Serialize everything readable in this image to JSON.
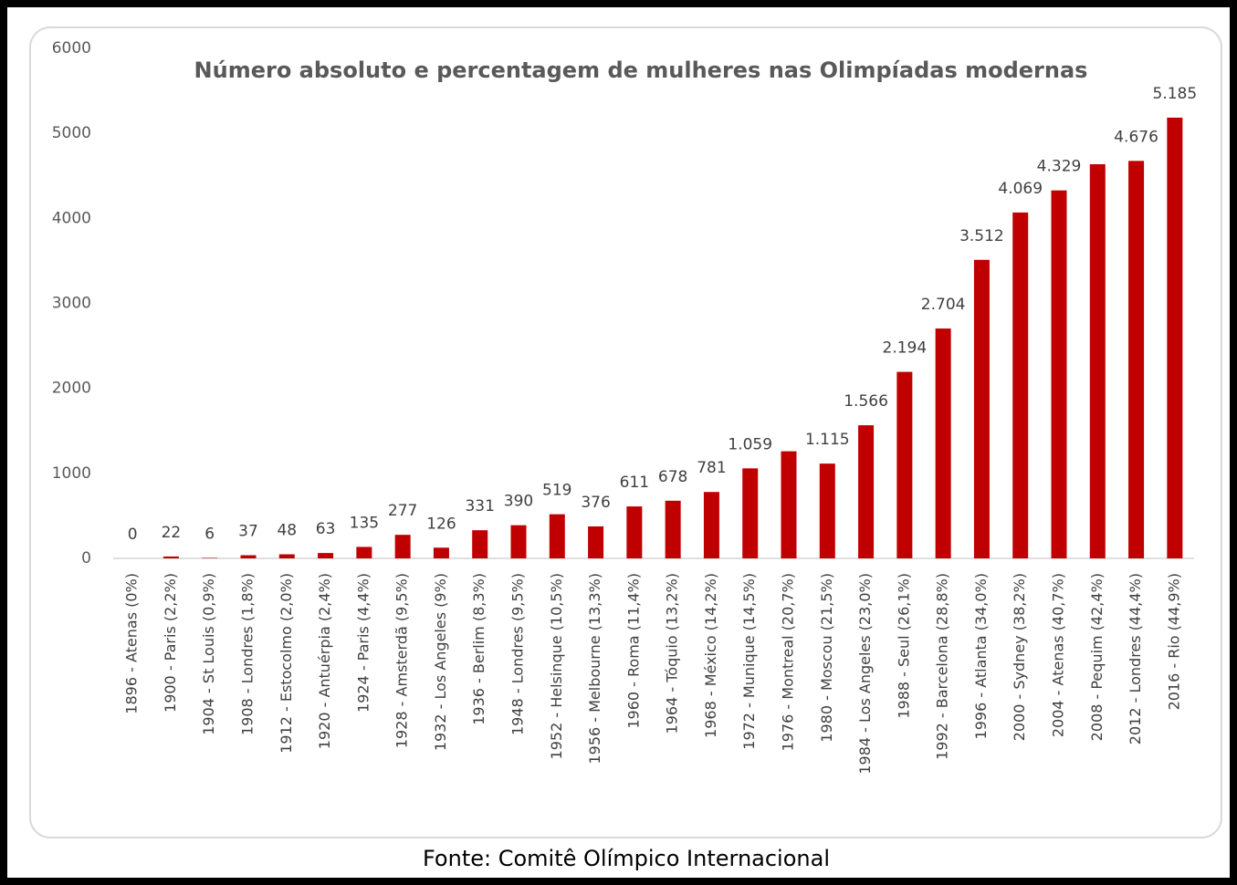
{
  "chart_data": {
    "type": "bar",
    "title": "Número absoluto e percentagem de mulheres nas Olimpíadas modernas",
    "source": "Fonte: Comitê Olímpico Internacional",
    "categories": [
      "1896 - Atenas (0%)",
      "1900 - Paris (2,2%)",
      "1904 - St Louis (0,9%)",
      "1908 - Londres (1,8%)",
      "1912 - Estocolmo (2,0%)",
      "1920 - Antuérpia (2,4%)",
      "1924 - Paris (4,4%)",
      "1928 - Amsterdã (9,5%)",
      "1932 - Los Angeles (9%)",
      "1936 - Berlim (8,3%)",
      "1948 - Londres (9,5%)",
      "1952 - Helsinque (10,5%)",
      "1956 - Melbourne (13,3%)",
      "1960 - Roma (11,4%)",
      "1964 - Tóquio (13,2%)",
      "1968 - México (14,2%)",
      "1972 - Munique (14,5%)",
      "1976 - Montreal (20,7%)",
      "1980 - Moscou (21,5%)",
      "1984 - Los Angeles (23,0%)",
      "1988 - Seul (26,1%)",
      "1992 - Barcelona (28,8%)",
      "1996 - Atlanta (34,0%)",
      "2000 - Sydney (38,2%)",
      "2004 - Atenas (40,7%)",
      "2008 - Pequim (42,4%)",
      "2012 - Londres (44,4%)",
      "2016 - Rio (44,9%)"
    ],
    "values": [
      0,
      22,
      6,
      37,
      48,
      63,
      135,
      277,
      126,
      331,
      390,
      519,
      376,
      611,
      678,
      781,
      1059,
      1260,
      1115,
      1566,
      2194,
      2704,
      3512,
      4069,
      4329,
      4637,
      4676,
      5185
    ],
    "value_labels": [
      "0",
      "22",
      "6",
      "37",
      "48",
      "63",
      "135",
      "277",
      "126",
      "331",
      "390",
      "519",
      "376",
      "611",
      "678",
      "781",
      "1.059",
      null,
      "1.115",
      "1.566",
      "2.194",
      "2.704",
      "3.512",
      "4.069",
      "4.329",
      null,
      "4.676",
      "5.185"
    ],
    "color": "#c00000",
    "ylim": [
      0,
      6000
    ],
    "yticks": [
      0,
      1000,
      2000,
      3000,
      4000,
      5000,
      6000
    ],
    "grid": false
  }
}
